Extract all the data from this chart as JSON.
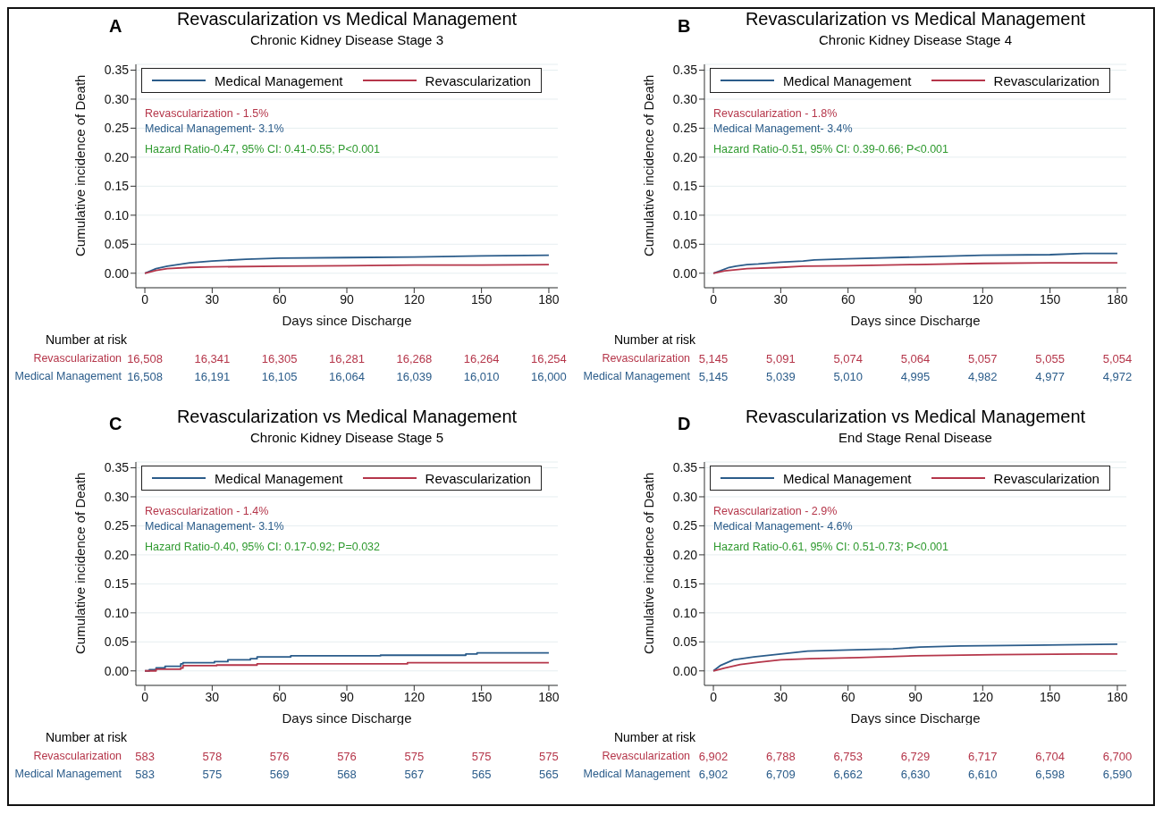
{
  "chart_data": [
    {
      "type": "line",
      "title": "Revascularization vs Medical Management",
      "subtitle": "Chronic Kidney Disease Stage 3",
      "xlabel": "Days since Discharge",
      "ylabel": "Cumulative incidence of Death",
      "xlim": [
        -4,
        184
      ],
      "xticks": [
        0,
        30,
        60,
        90,
        120,
        150,
        180
      ],
      "ylim": [
        -0.025,
        0.36
      ],
      "yticks": [
        {
          "value": 0,
          "label": "0.00"
        },
        0.05,
        {
          "value": 0.1,
          "label": "0.10"
        },
        0.15,
        {
          "value": 0.2,
          "label": "0.20"
        },
        0.25,
        {
          "value": 0.3,
          "label": "0.30"
        },
        0.35
      ],
      "grid": "y",
      "legend": "top",
      "series": [
        {
          "name": "Medical Management",
          "color": "#2b5c8a",
          "x": [
            0,
            5,
            10,
            20,
            30,
            45,
            60,
            90,
            120,
            150,
            180
          ],
          "values": [
            0,
            0.008,
            0.012,
            0.018,
            0.021,
            0.024,
            0.026,
            0.027,
            0.028,
            0.03,
            0.031
          ]
        },
        {
          "name": "Revascularization",
          "color": "#b5364a",
          "x": [
            0,
            5,
            10,
            20,
            30,
            60,
            90,
            120,
            150,
            180
          ],
          "values": [
            0,
            0.005,
            0.008,
            0.01,
            0.011,
            0.012,
            0.013,
            0.014,
            0.014,
            0.015
          ]
        }
      ],
      "annotations": [
        "A",
        "Revascularization - 1.5%",
        "Medical Management- 3.1%",
        "Hazard Ratio-0.47, 95% CI: 0.41-0.55; P<0.001",
        "Number at risk",
        "Revascularization",
        "16,508",
        "16,341",
        "16,305",
        "16,281",
        "16,268",
        "16,264",
        "16,254",
        "Medical Management",
        "16,508",
        "16,191",
        "16,105",
        "16,064",
        "16,039",
        "16,010",
        "16,000"
      ]
    },
    {
      "type": "line",
      "title": "Revascularization vs Medical Management",
      "subtitle": "Chronic Kidney Disease Stage 4",
      "xlabel": "Days since Discharge",
      "ylabel": "Cumulative incidence of Death",
      "xlim": [
        -4,
        184
      ],
      "xticks": [
        0,
        30,
        60,
        90,
        120,
        150,
        180
      ],
      "ylim": [
        -0.025,
        0.36
      ],
      "yticks": [
        {
          "value": 0,
          "label": "0.00"
        },
        0.05,
        {
          "value": 0.1,
          "label": "0.10"
        },
        0.15,
        {
          "value": 0.2,
          "label": "0.20"
        },
        0.25,
        {
          "value": 0.3,
          "label": "0.30"
        },
        0.35
      ],
      "grid": "y",
      "legend": "top",
      "series": [
        {
          "name": "Medical Management",
          "color": "#2b5c8a",
          "x": [
            0,
            3,
            7,
            10,
            15,
            20,
            30,
            40,
            45,
            60,
            90,
            120,
            150,
            165,
            180
          ],
          "values": [
            0,
            0.004,
            0.01,
            0.012,
            0.015,
            0.016,
            0.019,
            0.021,
            0.023,
            0.025,
            0.028,
            0.031,
            0.032,
            0.034,
            0.034
          ]
        },
        {
          "name": "Revascularization",
          "color": "#b5364a",
          "x": [
            0,
            5,
            10,
            15,
            30,
            40,
            60,
            90,
            120,
            150,
            180
          ],
          "values": [
            0,
            0.004,
            0.006,
            0.008,
            0.01,
            0.012,
            0.013,
            0.015,
            0.017,
            0.018,
            0.018
          ]
        }
      ],
      "annotations": [
        "B",
        "Revascularization - 1.8%",
        "Medical Management- 3.4%",
        "Hazard Ratio-0.51, 95% CI: 0.39-0.66; P<0.001",
        "Number at risk",
        "Revascularization",
        "5,145",
        "5,091",
        "5,074",
        "5,064",
        "5,057",
        "5,055",
        "5,054",
        "Medical Management",
        "5,145",
        "5,039",
        "5,010",
        "4,995",
        "4,982",
        "4,977",
        "4,972"
      ]
    },
    {
      "type": "step",
      "title": "Revascularization vs Medical Management",
      "subtitle": "Chronic Kidney Disease Stage 5",
      "xlabel": "Days since Discharge",
      "ylabel": "Cumulative incidence of Death",
      "xlim": [
        -4,
        184
      ],
      "xticks": [
        0,
        30,
        60,
        90,
        120,
        150,
        180
      ],
      "ylim": [
        -0.025,
        0.36
      ],
      "yticks": [
        {
          "value": 0,
          "label": "0.00"
        },
        0.05,
        {
          "value": 0.1,
          "label": "0.10"
        },
        0.15,
        {
          "value": 0.2,
          "label": "0.20"
        },
        0.25,
        {
          "value": 0.3,
          "label": "0.30"
        },
        0.35
      ],
      "grid": "y",
      "legend": "top",
      "series": [
        {
          "name": "Medical Management",
          "color": "#2b5c8a",
          "x": [
            0,
            2,
            5,
            9,
            16,
            17,
            31,
            37,
            47,
            50,
            65,
            105,
            143,
            148,
            180
          ],
          "values": [
            0,
            0.002,
            0.005,
            0.008,
            0.012,
            0.014,
            0.016,
            0.019,
            0.021,
            0.024,
            0.026,
            0.027,
            0.029,
            0.031,
            0.031
          ]
        },
        {
          "name": "Revascularization",
          "color": "#b5364a",
          "x": [
            0,
            5,
            16,
            17,
            32,
            50,
            117,
            180
          ],
          "values": [
            0,
            0.003,
            0.005,
            0.009,
            0.01,
            0.012,
            0.014,
            0.014
          ]
        }
      ],
      "annotations": [
        "C",
        "Revascularization - 1.4%",
        "Medical Management- 3.1%",
        "Hazard Ratio-0.40, 95% CI: 0.17-0.92; P=0.032",
        "Number at risk",
        "Revascularization",
        "583",
        "578",
        "576",
        "576",
        "575",
        "575",
        "575",
        "Medical Management",
        "583",
        "575",
        "569",
        "568",
        "567",
        "565",
        "565"
      ]
    },
    {
      "type": "line",
      "title": "Revascularization vs Medical Management",
      "subtitle": "End Stage Renal Disease",
      "xlabel": "Days since Discharge",
      "ylabel": "Cumulative incidence of Death",
      "xlim": [
        -4,
        184
      ],
      "xticks": [
        0,
        30,
        60,
        90,
        120,
        150,
        180
      ],
      "ylim": [
        -0.025,
        0.36
      ],
      "yticks": [
        {
          "value": 0,
          "label": "0.00"
        },
        0.05,
        {
          "value": 0.1,
          "label": "0.10"
        },
        0.15,
        {
          "value": 0.2,
          "label": "0.20"
        },
        0.25,
        {
          "value": 0.3,
          "label": "0.30"
        },
        0.35
      ],
      "grid": "y",
      "legend": "top",
      "series": [
        {
          "name": "Medical Management",
          "color": "#2b5c8a",
          "x": [
            0,
            3,
            9,
            18,
            30,
            42,
            60,
            80,
            92,
            110,
            140,
            180
          ],
          "values": [
            0,
            0.009,
            0.019,
            0.024,
            0.029,
            0.034,
            0.036,
            0.038,
            0.041,
            0.043,
            0.044,
            0.046
          ]
        },
        {
          "name": "Revascularization",
          "color": "#b5364a",
          "x": [
            0,
            5,
            12,
            20,
            30,
            43,
            65,
            90,
            125,
            165,
            180
          ],
          "values": [
            0,
            0.005,
            0.011,
            0.015,
            0.019,
            0.021,
            0.023,
            0.026,
            0.028,
            0.029,
            0.029
          ]
        }
      ],
      "annotations": [
        "D",
        "Revascularization - 2.9%",
        "Medical Management- 4.6%",
        "Hazard Ratio-0.61, 95% CI: 0.51-0.73; P<0.001",
        "Number at risk",
        "Revascularization",
        "6,902",
        "6,788",
        "6,753",
        "6,729",
        "6,717",
        "6,704",
        "6,700",
        "Medical Management",
        "6,902",
        "6,709",
        "6,662",
        "6,630",
        "6,610",
        "6,598",
        "6,590"
      ]
    }
  ]
}
